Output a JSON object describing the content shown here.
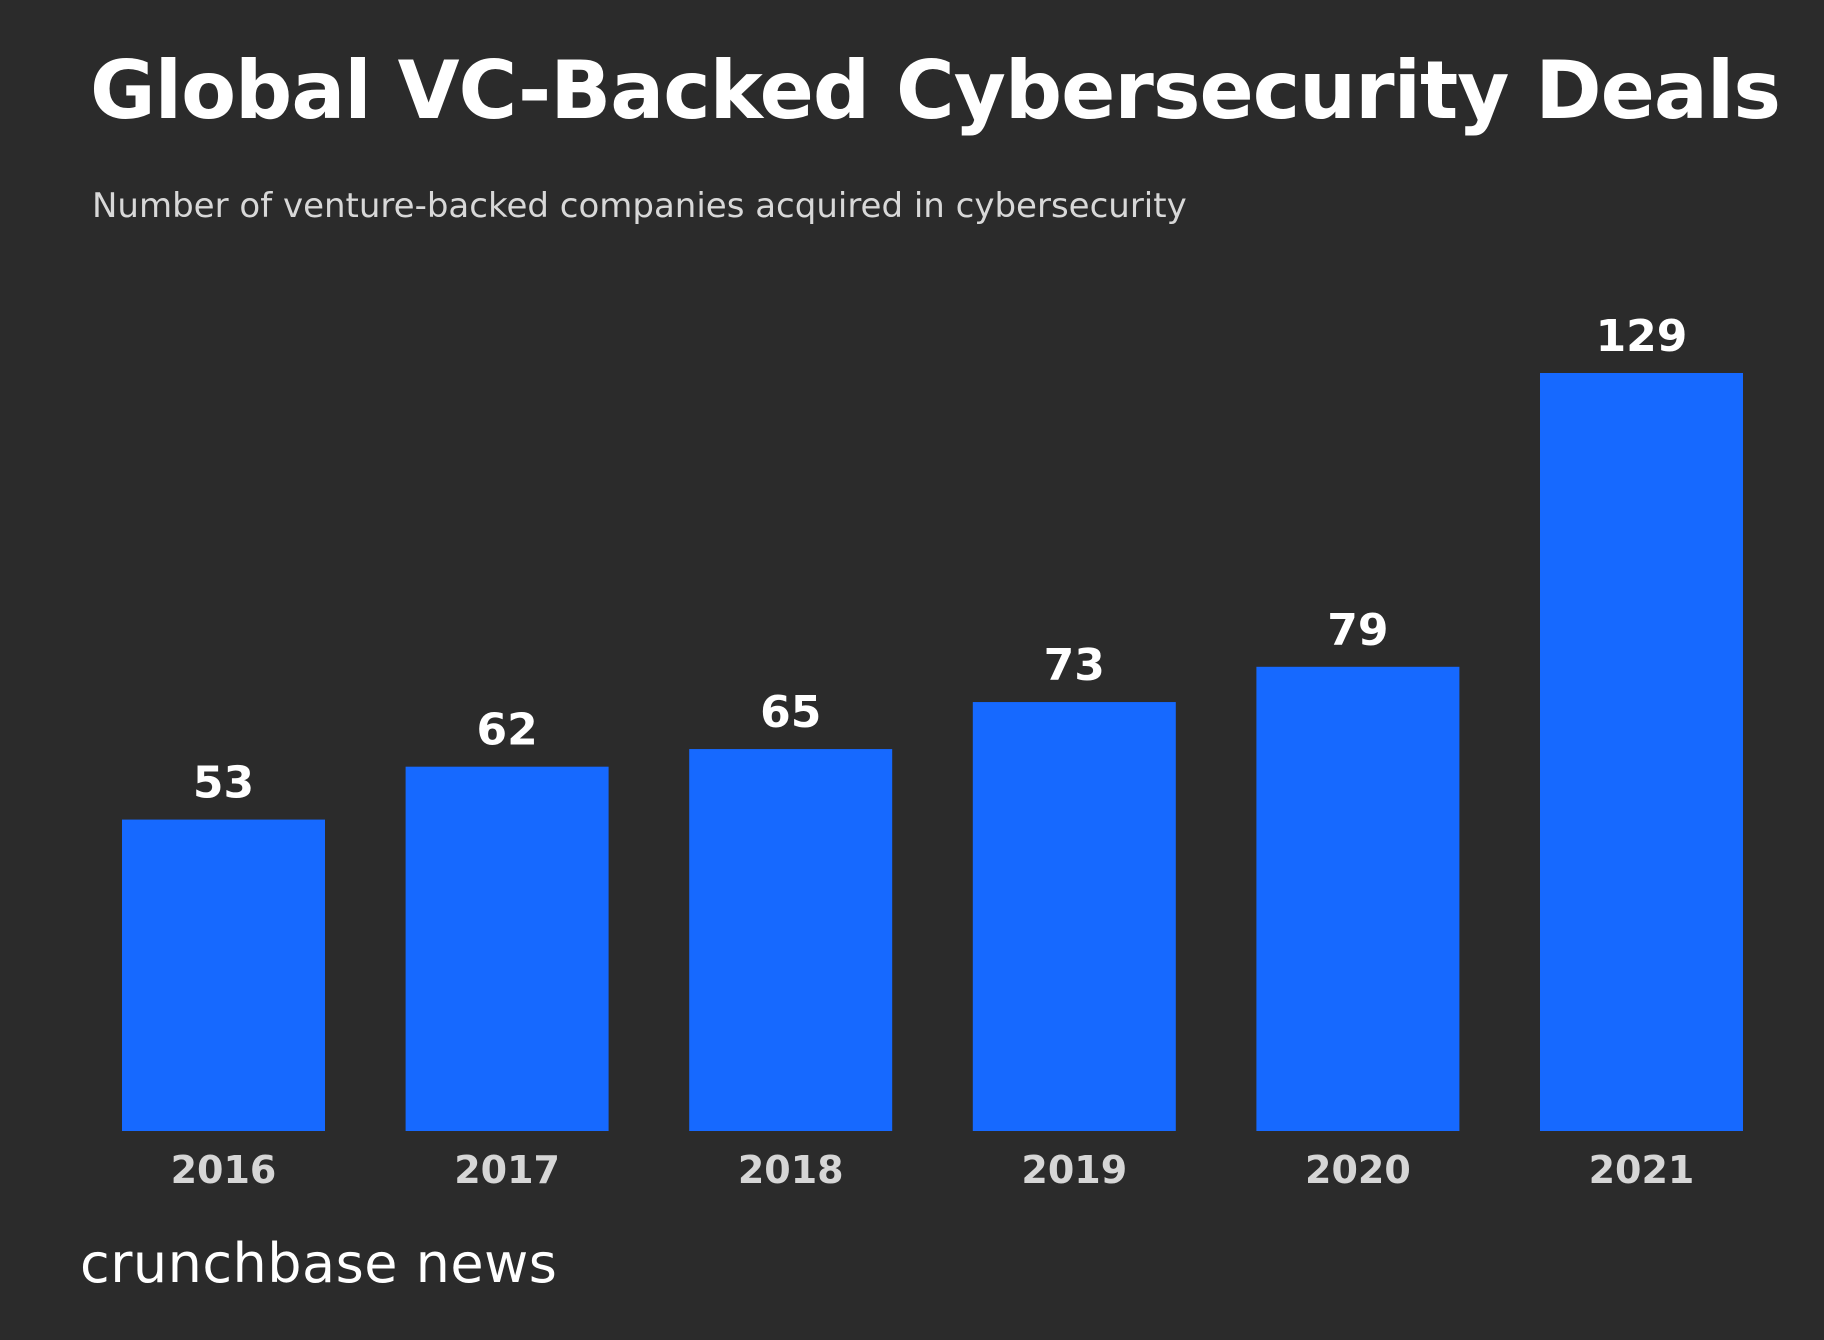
{
  "header": {
    "title": "Global VC-Backed Cybersecurity Deals",
    "subtitle": "Number of venture-backed companies acquired in cybersecurity"
  },
  "footer": {
    "brand": "crunchbase news"
  },
  "colors": {
    "background": "#2b2b2b",
    "bar": "#1669ff",
    "value_label": "#ffffff",
    "tick_label": "#d6d6d6"
  },
  "chart_data": {
    "type": "bar",
    "title": "Global VC-Backed Cybersecurity Deals",
    "subtitle": "Number of venture-backed companies acquired in cybersecurity",
    "categories": [
      "2016",
      "2017",
      "2018",
      "2019",
      "2020",
      "2021"
    ],
    "values": [
      53,
      62,
      65,
      73,
      79,
      129
    ],
    "xlabel": "",
    "ylabel": "",
    "ylim": [
      0,
      130
    ],
    "grid": false,
    "legend": "none",
    "data_labels": true
  }
}
